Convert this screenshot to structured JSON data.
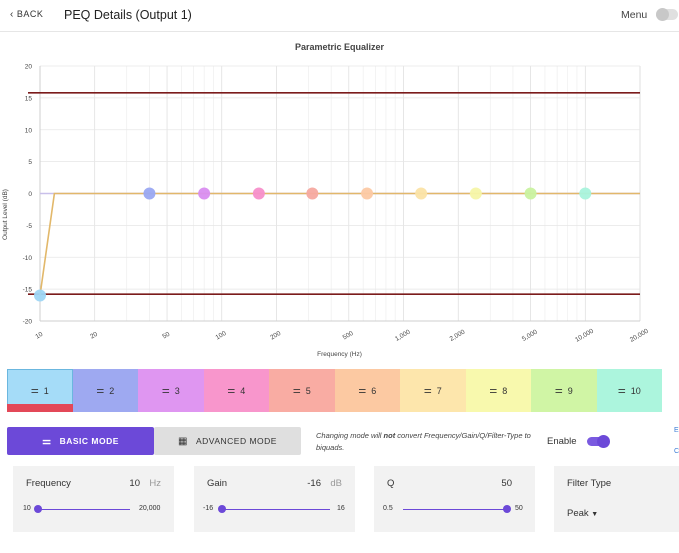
{
  "header": {
    "back_label": "BACK",
    "title": "PEQ Details (Output 1)",
    "menu_label": "Menu"
  },
  "chart_data": {
    "type": "line",
    "title": "Parametric Equalizer",
    "xlabel": "Frequency (Hz)",
    "ylabel": "Output Level (dB)",
    "x_scale": "log",
    "xlim": [
      10,
      20000
    ],
    "ylim": [
      -20,
      20
    ],
    "x_ticks": [
      "10",
      "20",
      "50",
      "100",
      "200",
      "500",
      "1,000",
      "2,000",
      "5,000",
      "10,000",
      "20,000"
    ],
    "y_ticks": [
      "20",
      "15",
      "10",
      "5",
      "0",
      "-5",
      "-10",
      "-15",
      "-20"
    ],
    "limit_lines": [
      15.8,
      -15.8
    ],
    "limit_color": "#7b1b1b",
    "response": {
      "x": [
        10,
        12,
        20000
      ],
      "y": [
        -16,
        0,
        0
      ],
      "color": "#e2b86a"
    },
    "band_points": [
      {
        "band": 1,
        "freq": 10,
        "gain": -16,
        "color": "#9ed6f5"
      },
      {
        "band": 2,
        "freq": 40,
        "gain": 0,
        "color": "#9aa8f2"
      },
      {
        "band": 3,
        "freq": 80,
        "gain": 0,
        "color": "#d98df0"
      },
      {
        "band": 4,
        "freq": 160,
        "gain": 0,
        "color": "#f78fca"
      },
      {
        "band": 5,
        "freq": 315,
        "gain": 0,
        "color": "#f6a9a0"
      },
      {
        "band": 6,
        "freq": 630,
        "gain": 0,
        "color": "#fcc9a4"
      },
      {
        "band": 7,
        "freq": 1250,
        "gain": 0,
        "color": "#fbe3a6"
      },
      {
        "band": 8,
        "freq": 2500,
        "gain": 0,
        "color": "#f6f6a8"
      },
      {
        "band": 9,
        "freq": 5000,
        "gain": 0,
        "color": "#c9f2a0"
      },
      {
        "band": 10,
        "freq": 10000,
        "gain": 0,
        "color": "#a9f3dc"
      }
    ]
  },
  "bands": [
    {
      "label": "1",
      "color": "#a5dcf8",
      "active": true
    },
    {
      "label": "2",
      "color": "#9ea9f1",
      "active": false
    },
    {
      "label": "3",
      "color": "#df96f1",
      "active": false
    },
    {
      "label": "4",
      "color": "#f896cc",
      "active": false
    },
    {
      "label": "5",
      "color": "#f9aca3",
      "active": false
    },
    {
      "label": "6",
      "color": "#fcc9a2",
      "active": false
    },
    {
      "label": "7",
      "color": "#fde6ac",
      "active": false
    },
    {
      "label": "8",
      "color": "#f8f9ad",
      "active": false
    },
    {
      "label": "9",
      "color": "#d0f5a5",
      "active": false
    },
    {
      "label": "10",
      "color": "#acf5dd",
      "active": false
    }
  ],
  "mode": {
    "basic_label": "BASIC MODE",
    "advanced_label": "ADVANCED MODE",
    "note_pre": "Changing mode will ",
    "note_bold": "not",
    "note_post": " convert Frequency/Gain/Q/Filter-Type to biquads.",
    "enable_label": "Enable",
    "enabled": true,
    "side_e": "E",
    "side_c": "C"
  },
  "params": {
    "frequency": {
      "label": "Frequency",
      "value": "10",
      "unit": "Hz",
      "min": "10",
      "max": "20,000",
      "level": 0.0
    },
    "gain": {
      "label": "Gain",
      "value": "-16",
      "unit": "dB",
      "min": "-16",
      "max": "16",
      "level": 0.0
    },
    "q": {
      "label": "Q",
      "value": "50",
      "min": "0.5",
      "max": "50",
      "level": 1.0
    },
    "filter_type": {
      "label": "Filter Type",
      "value": "Peak"
    }
  }
}
